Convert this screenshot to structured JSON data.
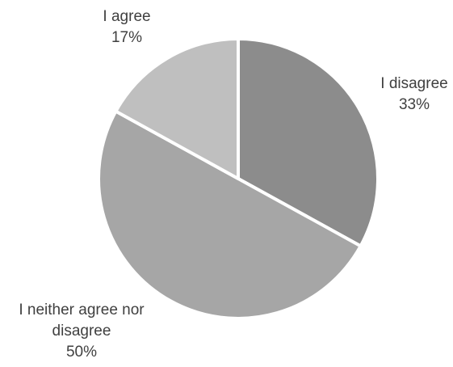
{
  "chart_data": {
    "type": "pie",
    "slices": [
      {
        "label_lines": [
          "I disagree"
        ],
        "percent_label": "33%",
        "value": 33,
        "color": "#8c8c8c"
      },
      {
        "label_lines": [
          "I neither agree nor",
          "disagree"
        ],
        "percent_label": "50%",
        "value": 50,
        "color": "#a6a6a6"
      },
      {
        "label_lines": [
          "I agree"
        ],
        "percent_label": "17%",
        "value": 17,
        "color": "#bfbfbf"
      }
    ],
    "start_angle_deg": 0,
    "direction": "clockwise",
    "slice_separator_color": "#ffffff",
    "label_color": "#404040",
    "legend": "none"
  }
}
